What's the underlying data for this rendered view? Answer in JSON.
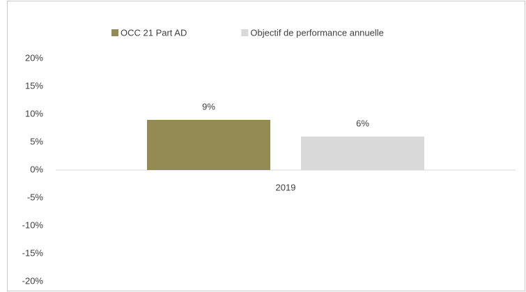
{
  "chart_data": {
    "type": "bar",
    "categories": [
      "2019"
    ],
    "series": [
      {
        "name": "OCC 21 Part AD",
        "color": "#948a54",
        "values": [
          9
        ],
        "value_labels": [
          "9%"
        ]
      },
      {
        "name": "Objectif de performance annuelle",
        "color": "#d9d9d9",
        "values": [
          6
        ],
        "value_labels": [
          "6%"
        ]
      }
    ],
    "ylim": [
      -20,
      20
    ],
    "yticks": [
      {
        "value": -20,
        "label": "-20%"
      },
      {
        "value": -15,
        "label": "-15%"
      },
      {
        "value": -10,
        "label": "-10%"
      },
      {
        "value": -5,
        "label": "-5%"
      },
      {
        "value": 0,
        "label": "0%"
      },
      {
        "value": 5,
        "label": "5%"
      },
      {
        "value": 10,
        "label": "10%"
      },
      {
        "value": 15,
        "label": "15%"
      },
      {
        "value": 20,
        "label": "20%"
      }
    ],
    "legend": "top",
    "grid": false
  }
}
